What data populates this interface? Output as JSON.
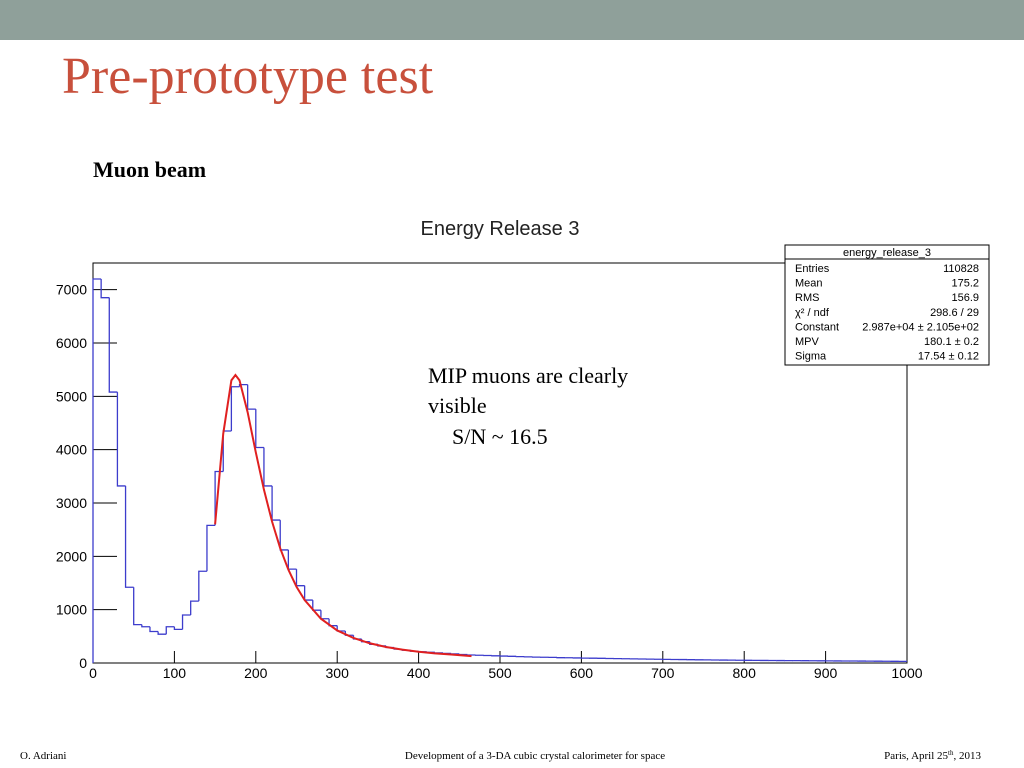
{
  "slide": {
    "title": "Pre-prototype test",
    "subtitle": "Muon beam",
    "annotation_lines": [
      "MIP muons are clearly",
      "visible",
      "S/N ~ 16.5"
    ],
    "footer_left": "O. Adriani",
    "footer_center": "Development of a 3-DA cubic crystal calorimeter for space",
    "footer_right": [
      "Paris, April 25",
      "th",
      ", 2013"
    ]
  },
  "stats": {
    "title": "energy_release_3",
    "rows": [
      [
        "Entries",
        "110828"
      ],
      [
        "Mean",
        "175.2"
      ],
      [
        "RMS",
        "156.9"
      ],
      [
        "χ² / ndf",
        "298.6 / 29"
      ],
      [
        "Constant",
        "2.987e+04 ± 2.105e+02"
      ],
      [
        "MPV",
        "180.1 ± 0.2"
      ],
      [
        "Sigma",
        "17.54 ± 0.12"
      ]
    ]
  },
  "chart_data": {
    "type": "histogram",
    "title": "Energy Release 3",
    "color": "#3c3ccc",
    "fit_color": "#e02020",
    "bins": [
      0,
      10,
      20,
      30,
      40,
      50,
      60,
      70,
      80,
      90,
      100,
      110,
      120,
      130,
      140,
      150,
      160,
      170,
      180,
      190,
      200,
      210,
      220,
      230,
      240,
      250,
      260,
      270,
      280,
      290,
      300,
      310,
      320,
      330,
      340,
      350,
      360,
      370,
      380,
      390,
      400,
      410,
      420,
      430,
      440,
      450,
      460,
      470,
      480,
      490,
      500,
      510,
      520,
      530,
      540,
      550,
      560,
      570,
      580,
      590,
      600,
      610,
      620,
      630,
      640,
      650,
      660,
      670,
      680,
      690,
      700,
      710,
      720,
      730,
      740,
      750,
      760,
      770,
      780,
      790,
      800,
      810,
      820,
      830,
      840,
      850,
      860,
      870,
      880,
      890,
      900,
      910,
      920,
      930,
      940,
      950,
      960,
      970,
      980,
      990,
      1000
    ],
    "values": [
      7200,
      6850,
      5080,
      3320,
      1420,
      720,
      680,
      590,
      540,
      680,
      630,
      900,
      1160,
      1720,
      2580,
      3590,
      4350,
      5180,
      5220,
      4760,
      4040,
      3320,
      2680,
      2120,
      1760,
      1450,
      1180,
      990,
      830,
      700,
      600,
      520,
      450,
      400,
      350,
      320,
      290,
      260,
      240,
      220,
      210,
      200,
      190,
      180,
      170,
      160,
      150,
      145,
      140,
      135,
      130,
      125,
      120,
      115,
      110,
      108,
      105,
      100,
      98,
      95,
      92,
      90,
      88,
      85,
      82,
      80,
      78,
      75,
      72,
      70,
      68,
      66,
      64,
      62,
      60,
      58,
      56,
      55,
      54,
      52,
      50,
      49,
      48,
      47,
      46,
      45,
      44,
      43,
      42,
      41,
      40,
      39,
      38,
      37,
      36,
      35,
      34,
      33,
      32,
      31
    ],
    "fit": {
      "x": [
        150,
        160,
        170,
        175,
        180,
        190,
        200,
        210,
        220,
        230,
        240,
        250,
        260,
        280,
        300,
        320,
        340,
        360,
        380,
        400,
        420,
        440,
        465
      ],
      "values": [
        2600,
        4300,
        5300,
        5400,
        5300,
        4700,
        3950,
        3250,
        2650,
        2150,
        1750,
        1430,
        1180,
        830,
        610,
        470,
        370,
        300,
        250,
        210,
        180,
        160,
        130
      ]
    },
    "xlim": [
      0,
      1000
    ],
    "xticks": [
      0,
      100,
      200,
      300,
      400,
      500,
      600,
      700,
      800,
      900,
      1000
    ],
    "ylim": [
      0,
      7500
    ],
    "yticks": [
      0,
      1000,
      2000,
      3000,
      4000,
      5000,
      6000,
      7000
    ]
  }
}
